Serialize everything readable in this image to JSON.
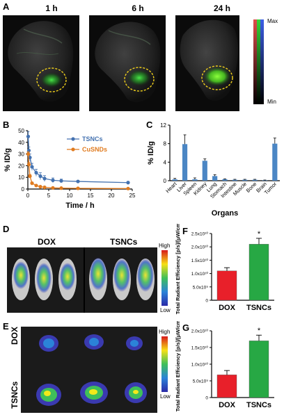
{
  "panels": {
    "A": {
      "label": "A",
      "timepoints": [
        "1 h",
        "6 h",
        "24 h"
      ],
      "colorbar": {
        "max_label": "Max",
        "min_label": "Min"
      }
    },
    "D": {
      "label": "D",
      "groups": [
        "DOX",
        "TSNCs"
      ],
      "colorbar": {
        "high_label": "High",
        "low_label": "Low"
      }
    },
    "E": {
      "label": "E",
      "groups": [
        "DOX",
        "TSNCs"
      ],
      "colorbar": {
        "high_label": "High",
        "low_label": "Low"
      }
    }
  },
  "chart_data": [
    {
      "panel": "B",
      "type": "line",
      "xlabel": "Time / h",
      "ylabel": "% ID/g",
      "xlim": [
        0,
        25
      ],
      "ylim": [
        0,
        50
      ],
      "xticks": [
        0,
        5,
        10,
        15,
        20,
        25
      ],
      "yticks": [
        0,
        10,
        20,
        30,
        40,
        50
      ],
      "legend_position": "top-right",
      "series": [
        {
          "name": "TSNCs",
          "color": "#4472b0",
          "x": [
            0.083,
            0.25,
            0.5,
            1,
            2,
            3,
            4,
            6,
            8,
            12,
            24
          ],
          "y": [
            45,
            33,
            27,
            19,
            14,
            11,
            9,
            7.5,
            7,
            6.5,
            5.5
          ],
          "error": [
            4,
            3,
            3,
            3,
            3,
            3,
            2.5,
            2,
            1.5,
            1,
            1
          ]
        },
        {
          "name": "CuSNDs",
          "color": "#e07b1f",
          "x": [
            0.083,
            0.25,
            0.5,
            1,
            2,
            3,
            4,
            6,
            8,
            12,
            24
          ],
          "y": [
            30,
            21,
            11,
            5,
            3,
            2,
            1.5,
            1,
            0.8,
            0.6,
            0.4
          ],
          "error": [
            2,
            2,
            1.5,
            1,
            0.5,
            0.5,
            0.3,
            0.3,
            0.2,
            0.2,
            0.1
          ]
        }
      ]
    },
    {
      "panel": "C",
      "type": "bar",
      "xlabel": "Organs",
      "ylabel": "% ID/g",
      "ylim": [
        0,
        12
      ],
      "yticks": [
        0,
        4,
        8,
        12
      ],
      "color": "#4b86c4",
      "categories": [
        "Heart",
        "Liver",
        "Spleen",
        "Kidney",
        "Lung",
        "Stomach",
        "Intestine",
        "Muscle",
        "Bone",
        "Brain",
        "Tumor"
      ],
      "values": [
        0.3,
        7.9,
        0.3,
        4.3,
        1.0,
        0.3,
        0.2,
        0.2,
        0.2,
        0.1,
        8.0
      ],
      "errors": [
        0.2,
        2.0,
        0.3,
        0.4,
        0.3,
        0.1,
        0.1,
        0.1,
        0.1,
        0.05,
        1.2
      ]
    },
    {
      "panel": "F",
      "type": "bar",
      "ylabel": "Total Radiant Efficiency [p/s]/[μW/cm²]",
      "ylim_exp": 10,
      "yticks": [
        "0",
        "5.0x10⁹",
        "1.0x10¹⁰",
        "1.5x10¹⁰",
        "2.0x10¹⁰",
        "2.5x10¹⁰"
      ],
      "categories": [
        "DOX",
        "TSNCs"
      ],
      "values": [
        11000000000.0,
        21000000000.0
      ],
      "errors": [
        1200000000.0,
        2200000000.0
      ],
      "colors": [
        "#e8202a",
        "#27a844"
      ],
      "annotation": "*"
    },
    {
      "panel": "G",
      "type": "bar",
      "ylabel": "Total Radiant Efficiency [p/s]/[μW/cm²]",
      "yticks": [
        "0",
        "5.0x10⁹",
        "1.0x10¹⁰",
        "1.5x10¹⁰",
        "2.0x10¹⁰"
      ],
      "categories": [
        "DOX",
        "TSNCs"
      ],
      "values": [
        6800000000.0,
        17000000000.0
      ],
      "errors": [
        1300000000.0,
        1700000000.0
      ],
      "colors": [
        "#e8202a",
        "#27a844"
      ],
      "annotation": "*"
    }
  ]
}
